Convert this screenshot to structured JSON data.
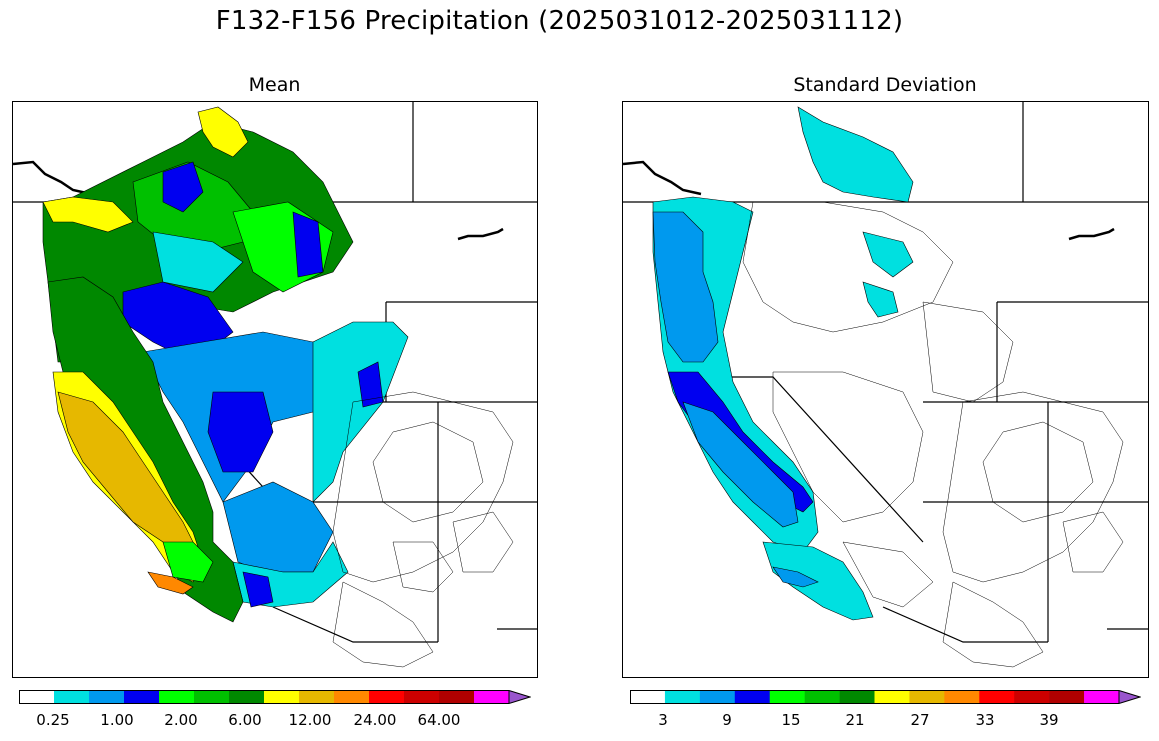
{
  "title": "F132-F156 Precipitation (2025031012-2025031112)",
  "panels": [
    {
      "id": "mean",
      "title": "Mean",
      "colorbar": {
        "tick_labels": [
          "0.25",
          "1.00",
          "2.00",
          "6.00",
          "12.00",
          "24.00",
          "64.00"
        ],
        "extend": "max"
      }
    },
    {
      "id": "stdev",
      "title": "Standard Deviation",
      "colorbar": {
        "tick_labels": [
          "3",
          "9",
          "15",
          "21",
          "27",
          "33",
          "39"
        ],
        "extend": "max"
      }
    }
  ],
  "colors": [
    "#ffffff",
    "#00e0e0",
    "#0099ee",
    "#0000f0",
    "#00ff00",
    "#00c000",
    "#008800",
    "#ffff00",
    "#e6b800",
    "#ff8800",
    "#ff0000",
    "#cc0000",
    "#b00000",
    "#ff00ff",
    "#9955cc"
  ],
  "legend_colors_note_free": true
}
